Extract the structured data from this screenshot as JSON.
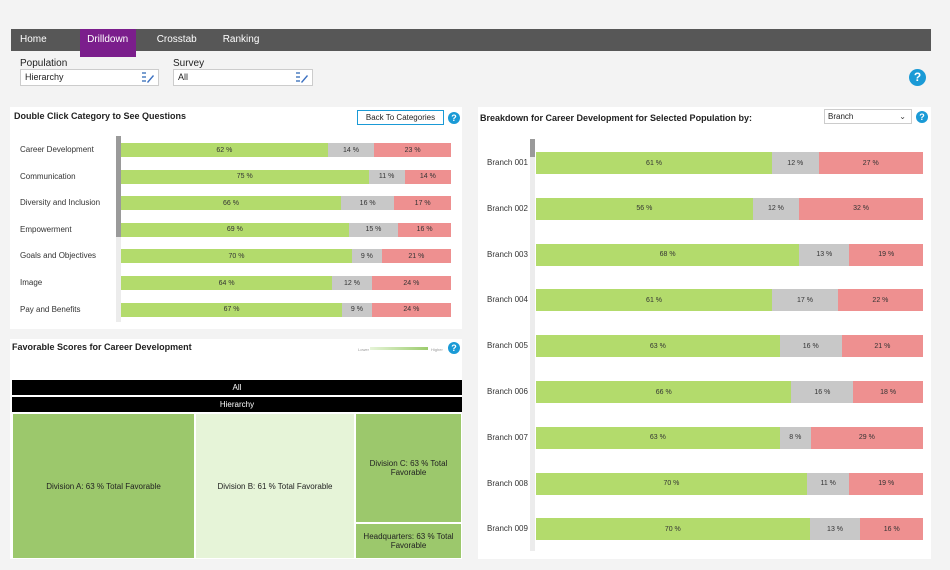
{
  "nav": {
    "tabs": [
      "Home",
      "Drilldown",
      "Crosstab",
      "Ranking"
    ],
    "active": "Drilldown"
  },
  "filters": {
    "population": {
      "label": "Population",
      "value": "Hierarchy"
    },
    "survey": {
      "label": "Survey",
      "value": "All"
    }
  },
  "help_glyph": "?",
  "categories_panel": {
    "title": "Double Click Category to See Questions",
    "back_button": "Back To Categories",
    "rows": [
      {
        "label": "Career Development",
        "fav": 62,
        "neu": 14,
        "unf": 23,
        "fav_label": "62 %",
        "neu_label": "14 %",
        "unf_label": "23 %"
      },
      {
        "label": "Communication",
        "fav": 75,
        "neu": 11,
        "unf": 14,
        "fav_label": "75 %",
        "neu_label": "11 %",
        "unf_label": "14 %"
      },
      {
        "label": "Diversity and Inclusion",
        "fav": 66,
        "neu": 16,
        "unf": 17,
        "fav_label": "66 %",
        "neu_label": "16 %",
        "unf_label": "17 %"
      },
      {
        "label": "Empowerment",
        "fav": 69,
        "neu": 15,
        "unf": 16,
        "fav_label": "69 %",
        "neu_label": "15 %",
        "unf_label": "16 %"
      },
      {
        "label": "Goals and Objectives",
        "fav": 70,
        "neu": 9,
        "unf": 21,
        "fav_label": "70 %",
        "neu_label": "9 %",
        "unf_label": "21 %"
      },
      {
        "label": "Image",
        "fav": 64,
        "neu": 12,
        "unf": 24,
        "fav_label": "64 %",
        "neu_label": "12 %",
        "unf_label": "24 %"
      },
      {
        "label": "Pay and Benefits",
        "fav": 67,
        "neu": 9,
        "unf": 24,
        "fav_label": "67 %",
        "neu_label": "9 %",
        "unf_label": "24 %"
      }
    ]
  },
  "treemap_panel": {
    "title": "Favorable Scores for Career Development",
    "legend_low": "Lower",
    "legend_high": "Higher",
    "header_all": "All",
    "header_hierarchy": "Hierarchy",
    "tiles": [
      {
        "label": "Division A: 63 % Total Favorable",
        "value": 63,
        "color": "#9cc86c"
      },
      {
        "label": "Division B: 61 % Total Favorable",
        "value": 61,
        "color": "#e6f4d8"
      },
      {
        "label": "Division C: 63 % Total Favorable",
        "value": 63,
        "color": "#9cc86c"
      },
      {
        "label": "Headquarters: 63 % Total Favorable",
        "value": 63,
        "color": "#9cc86c"
      }
    ]
  },
  "breakdown_panel": {
    "title": "Breakdown for Career Development  for Selected Population by:",
    "select_value": "Branch",
    "rows": [
      {
        "label": "Branch 001",
        "fav": 61,
        "neu": 12,
        "unf": 27,
        "fav_label": "61 %",
        "neu_label": "12 %",
        "unf_label": "27 %"
      },
      {
        "label": "Branch 002",
        "fav": 56,
        "neu": 12,
        "unf": 32,
        "fav_label": "56 %",
        "neu_label": "12 %",
        "unf_label": "32 %"
      },
      {
        "label": "Branch 003",
        "fav": 68,
        "neu": 13,
        "unf": 19,
        "fav_label": "68 %",
        "neu_label": "13 %",
        "unf_label": "19 %"
      },
      {
        "label": "Branch 004",
        "fav": 61,
        "neu": 17,
        "unf": 22,
        "fav_label": "61 %",
        "neu_label": "17 %",
        "unf_label": "22 %"
      },
      {
        "label": "Branch 005",
        "fav": 63,
        "neu": 16,
        "unf": 21,
        "fav_label": "63 %",
        "neu_label": "16 %",
        "unf_label": "21 %"
      },
      {
        "label": "Branch 006",
        "fav": 66,
        "neu": 16,
        "unf": 18,
        "fav_label": "66 %",
        "neu_label": "16 %",
        "unf_label": "18 %"
      },
      {
        "label": "Branch 007",
        "fav": 63,
        "neu": 8,
        "unf": 29,
        "fav_label": "63 %",
        "neu_label": "8 %",
        "unf_label": "29 %"
      },
      {
        "label": "Branch 008",
        "fav": 70,
        "neu": 11,
        "unf": 19,
        "fav_label": "70 %",
        "neu_label": "11 %",
        "unf_label": "19 %"
      },
      {
        "label": "Branch 009",
        "fav": 70,
        "neu": 13,
        "unf": 16,
        "fav_label": "70 %",
        "neu_label": "13 %",
        "unf_label": "16 %"
      }
    ]
  },
  "colors": {
    "favorable": "#b3db6c",
    "neutral": "#c8c8c8",
    "unfavorable": "#ee9090",
    "accent": "#7b1e8c",
    "help": "#1a9ad6"
  }
}
